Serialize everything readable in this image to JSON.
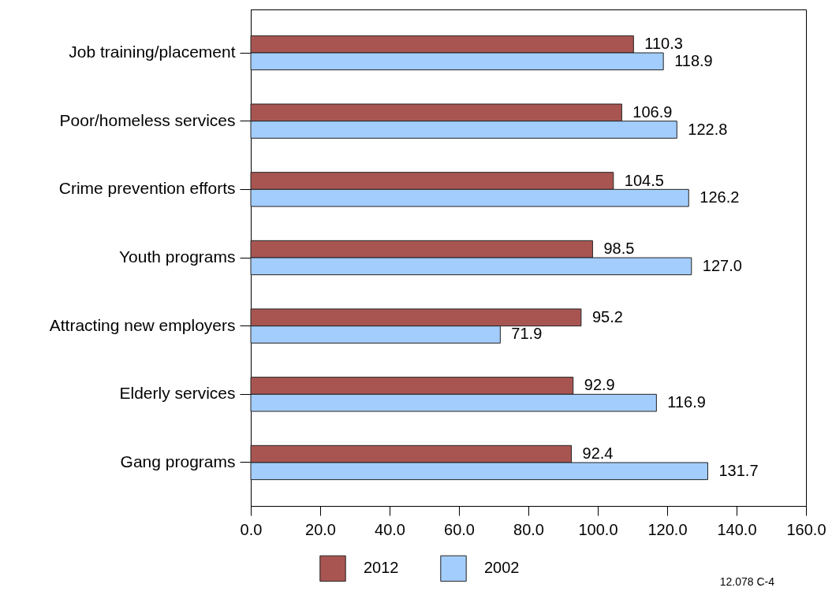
{
  "chart_data": {
    "type": "bar",
    "orientation": "horizontal",
    "categories": [
      "Job training/placement",
      "Poor/homeless services",
      "Crime prevention efforts",
      "Youth programs",
      "Attracting new employers",
      "Elderly services",
      "Gang programs"
    ],
    "series": [
      {
        "name": "2012",
        "color": "#a85552",
        "values": [
          110.3,
          106.9,
          104.5,
          98.5,
          95.2,
          92.9,
          92.4
        ],
        "value_labels": [
          "110.3",
          "106.9",
          "104.5",
          "98.5",
          "95.2",
          "92.9",
          "92.4"
        ]
      },
      {
        "name": "2002",
        "color": "#a3cdfc",
        "values": [
          118.9,
          122.8,
          126.2,
          127.0,
          71.9,
          116.9,
          131.7
        ],
        "value_labels": [
          "118.9",
          "122.8",
          "126.2",
          "127.0",
          "71.9",
          "116.9",
          "131.7"
        ]
      }
    ],
    "xlim": [
      0,
      160
    ],
    "xticks": [
      {
        "value": 0,
        "label": "0.0"
      },
      {
        "value": 20,
        "label": "20.0"
      },
      {
        "value": 40,
        "label": "40.0"
      },
      {
        "value": 60,
        "label": "60.0"
      },
      {
        "value": 80,
        "label": "80.0"
      },
      {
        "value": 100,
        "label": "100.0"
      },
      {
        "value": 120,
        "label": "120.0"
      },
      {
        "value": 140,
        "label": "140.0"
      },
      {
        "value": 160,
        "label": "160.0"
      }
    ],
    "legend": "bottom",
    "grid": false,
    "annotations": [
      "12.078 C-4"
    ]
  }
}
